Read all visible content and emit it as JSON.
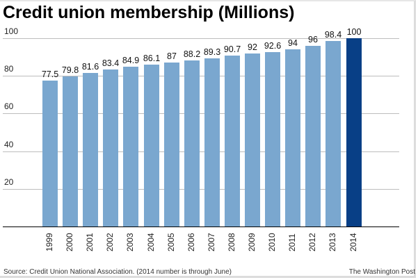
{
  "chart_data": {
    "type": "bar",
    "title": "Credit union membership (Millions)",
    "xlabel": "",
    "ylabel": "",
    "categories": [
      "1999",
      "2000",
      "2001",
      "2002",
      "2003",
      "2004",
      "2005",
      "2006",
      "2007",
      "2008",
      "2009",
      "2010",
      "2011",
      "2012",
      "2013",
      "2014"
    ],
    "values": [
      77.5,
      79.8,
      81.6,
      83.4,
      84.9,
      86.1,
      87,
      88.2,
      89.3,
      90.7,
      92,
      92.6,
      94,
      96,
      98.4,
      100
    ],
    "value_labels": [
      "77.5",
      "79.8",
      "81.6",
      "83.4",
      "84.9",
      "86.1",
      "87",
      "88.2",
      "89.3",
      "90.7",
      "92",
      "92.6",
      "94",
      "96",
      "98.4",
      "100"
    ],
    "highlighted_category": "2014",
    "ylim": [
      0,
      100
    ],
    "yticks": [
      20,
      40,
      60,
      80,
      100
    ],
    "ytick_labels": [
      "20",
      "40",
      "60",
      "80",
      "100"
    ],
    "grid": true,
    "legend": null,
    "colors": {
      "bar": "#7aa7cf",
      "highlight": "#083f86",
      "grid": "#bdbdbd",
      "axis": "#000000"
    }
  },
  "header": {
    "title": "Credit union membership (Millions)"
  },
  "footer": {
    "source": "Source: Credit Union National Association. (2014 number is through June)",
    "credit": "The Washington Post"
  }
}
